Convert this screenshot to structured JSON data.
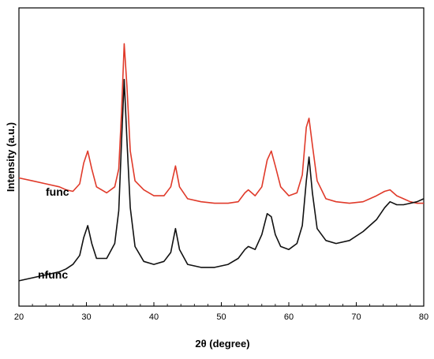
{
  "chart_data": {
    "type": "line",
    "title": "",
    "xlabel": "2θ (degree)",
    "ylabel": "Intensity (a.u.)",
    "xlim": [
      20,
      80
    ],
    "ylim": [
      0,
      1
    ],
    "y_ticks_shown": false,
    "grid": false,
    "x_ticks": [
      "20",
      "30",
      "40",
      "50",
      "60",
      "70",
      "80"
    ],
    "x_tick_values": [
      20,
      30,
      40,
      50,
      60,
      70,
      80
    ],
    "series": [
      {
        "name": "func",
        "color": "#e03a2a",
        "x": [
          20,
          22,
          24,
          26,
          27,
          28,
          29,
          29.6,
          30.2,
          30.8,
          31.5,
          33,
          34.2,
          34.8,
          35.2,
          35.6,
          36.0,
          36.5,
          37.2,
          38.5,
          40,
          41.5,
          42.5,
          43.2,
          43.8,
          45,
          47,
          49,
          51,
          52.5,
          53.5,
          54.0,
          55,
          56,
          56.8,
          57.4,
          58.0,
          58.8,
          60,
          61.2,
          62.0,
          62.6,
          63.0,
          63.5,
          64.2,
          65.5,
          67,
          69,
          71,
          73,
          74.2,
          75,
          76,
          77,
          78,
          79,
          80
        ],
        "y": [
          0.43,
          0.42,
          0.41,
          0.4,
          0.39,
          0.385,
          0.41,
          0.48,
          0.52,
          0.46,
          0.4,
          0.38,
          0.4,
          0.46,
          0.65,
          0.88,
          0.74,
          0.52,
          0.42,
          0.39,
          0.37,
          0.37,
          0.4,
          0.47,
          0.4,
          0.36,
          0.35,
          0.345,
          0.345,
          0.35,
          0.38,
          0.39,
          0.37,
          0.4,
          0.49,
          0.52,
          0.47,
          0.4,
          0.37,
          0.38,
          0.44,
          0.6,
          0.63,
          0.54,
          0.42,
          0.36,
          0.35,
          0.345,
          0.35,
          0.37,
          0.385,
          0.39,
          0.37,
          0.36,
          0.35,
          0.345,
          0.345
        ]
      },
      {
        "name": "nfunc",
        "color": "#111111",
        "x": [
          20,
          22,
          24,
          26,
          27,
          28,
          29,
          29.6,
          30.2,
          30.8,
          31.5,
          33,
          34.2,
          34.8,
          35.2,
          35.6,
          36.0,
          36.5,
          37.2,
          38.5,
          40,
          41.5,
          42.5,
          43.2,
          43.8,
          45,
          47,
          49,
          51,
          52.5,
          53.5,
          54.0,
          55,
          56,
          56.8,
          57.4,
          58.0,
          58.8,
          60,
          61.2,
          62.0,
          62.6,
          63.0,
          63.5,
          64.2,
          65.5,
          67,
          69,
          71,
          73,
          74.2,
          75,
          76,
          77,
          78,
          79,
          80
        ],
        "y": [
          0.085,
          0.095,
          0.105,
          0.115,
          0.125,
          0.14,
          0.17,
          0.23,
          0.27,
          0.21,
          0.16,
          0.16,
          0.21,
          0.32,
          0.55,
          0.76,
          0.56,
          0.33,
          0.2,
          0.15,
          0.14,
          0.15,
          0.18,
          0.26,
          0.19,
          0.14,
          0.13,
          0.13,
          0.14,
          0.16,
          0.19,
          0.2,
          0.19,
          0.24,
          0.31,
          0.3,
          0.24,
          0.2,
          0.19,
          0.21,
          0.27,
          0.42,
          0.5,
          0.38,
          0.26,
          0.22,
          0.21,
          0.22,
          0.25,
          0.29,
          0.33,
          0.35,
          0.34,
          0.34,
          0.345,
          0.35,
          0.36
        ]
      }
    ],
    "annotations": [
      "func",
      "nfunc"
    ]
  }
}
